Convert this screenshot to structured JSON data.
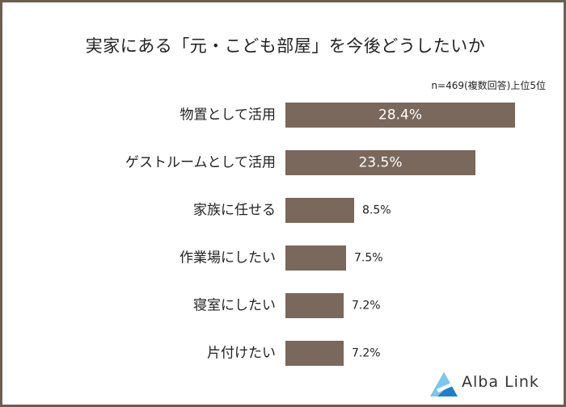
{
  "chart_data": {
    "type": "bar",
    "title": "実家にある「元・こども部屋」を今後どうしたいか",
    "note": "n=469(複数回答)上位5位",
    "categories": [
      "物置として活用",
      "ゲストルームとして活用",
      "家族に任せる",
      "作業場にしたい",
      "寝室にしたい",
      "片付けたい"
    ],
    "values": [
      28.4,
      23.5,
      8.5,
      7.5,
      7.2,
      7.2
    ],
    "value_labels": [
      "28.4%",
      "23.5%",
      "8.5%",
      "7.5%",
      "7.2%",
      "7.2%"
    ],
    "orientation": "horizontal",
    "xlim": [
      0,
      33
    ],
    "grid": false,
    "colors": {
      "bar": "#7a685c",
      "frame": "#6d5e52",
      "label_inside": "#ffffff",
      "label_outside": "#222222"
    }
  },
  "brand": {
    "name": "Alba Link",
    "logo_icon": "triangle-logo-icon",
    "logo_colors": [
      "#1f7fc9",
      "#7cc7ef"
    ]
  }
}
